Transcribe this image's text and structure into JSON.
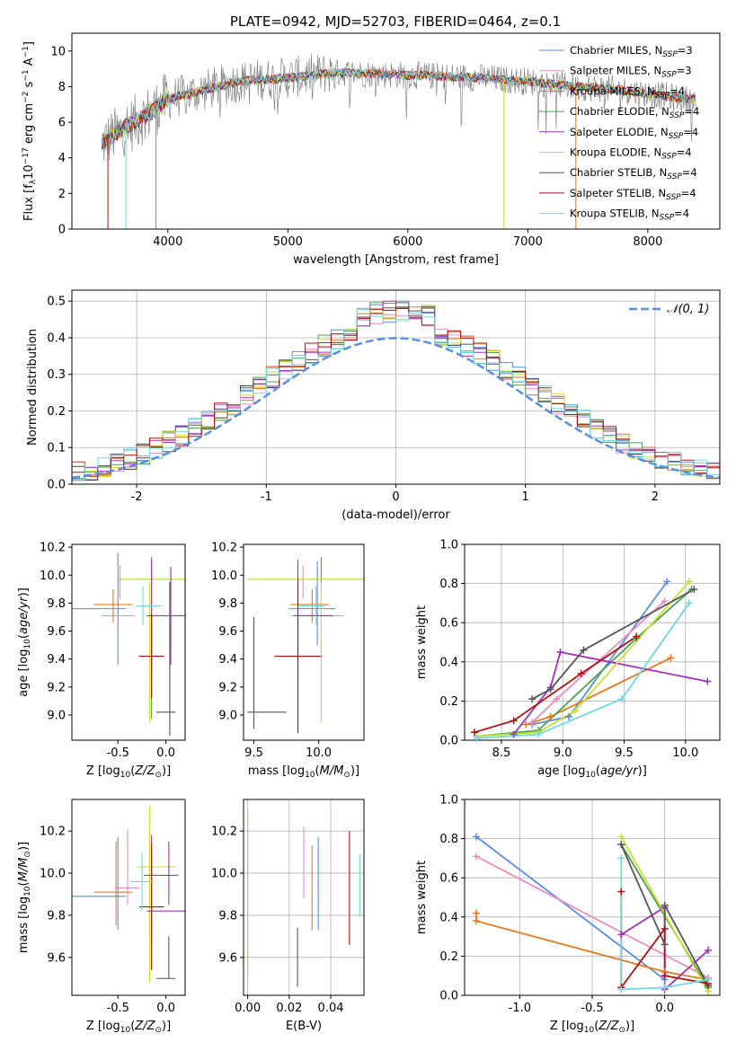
{
  "figure": {
    "title": "PLATE=0942, MJD=52703, FIBERID=0464, z=0.1"
  },
  "colors": {
    "chabrier_miles": "#5b8ee0",
    "salpeter_miles": "#e98ec3",
    "kroupa_miles": "#e8781e",
    "chabrier_elodie": "#50a050",
    "salpeter_elodie": "#a030c0",
    "kroupa_elodie": "#c8e030",
    "chabrier_stelib": "#555555",
    "salpeter_stelib": "#b01010",
    "kroupa_stelib": "#70d8e0"
  },
  "chart_data": [
    {
      "id": "spectrum",
      "type": "line",
      "title": "PLATE=0942, MJD=52703, FIBERID=0464, z=0.1",
      "xlabel": "wavelength [Angstrom, rest frame]",
      "ylabel": "Flux [f_λ 10⁻¹⁷ erg cm⁻² s⁻¹ A⁻¹]",
      "xlim": [
        3200,
        8600
      ],
      "ylim": [
        0,
        11
      ],
      "xticks": [
        4000,
        5000,
        6000,
        7000,
        8000
      ],
      "yticks": [
        0,
        2,
        4,
        6,
        8,
        10
      ],
      "grid": false,
      "legend_position": "right",
      "legend": [
        "Chabrier MILES, N_SSP=3",
        "Salpeter MILES, N_SSP=3",
        "Kroupa MILES, N_SSP=4",
        "Chabrier ELODIE, N_SSP=4",
        "Salpeter ELODIE, N_SSP=4",
        "Kroupa ELODIE, N_SSP=4",
        "Chabrier STELIB, N_SSP=4",
        "Salpeter STELIB, N_SSP=4",
        "Kroupa STELIB, N_SSP=4"
      ],
      "data_envelope": {
        "x": [
          3450,
          3600,
          3800,
          4000,
          4300,
          4600,
          5000,
          5400,
          5800,
          6200,
          6600,
          7000,
          7400,
          7800,
          8200,
          8400
        ],
        "y": [
          4.8,
          5.5,
          6.3,
          7.3,
          7.8,
          8.3,
          8.5,
          8.8,
          8.7,
          8.6,
          8.5,
          8.3,
          8.0,
          7.8,
          7.4,
          7.3
        ]
      }
    },
    {
      "id": "residual_histogram",
      "type": "bar",
      "xlabel": "(data-model)/error",
      "ylabel": "Normed distribution",
      "xlim": [
        -2.5,
        2.5
      ],
      "ylim": [
        0,
        0.53
      ],
      "xticks": [
        -2,
        -1,
        0,
        1,
        2
      ],
      "yticks": [
        0.0,
        0.1,
        0.2,
        0.3,
        0.4,
        0.5
      ],
      "grid": true,
      "legend_position": "top-right",
      "reference_curve": "𝒩(0, 1)",
      "bin_width": 0.1,
      "bin_start": -2.5
    },
    {
      "id": "age_vs_Z",
      "type": "scatter",
      "xlabel": "Z [log₁₀(Z/Z⊙)]",
      "ylabel": "age  [log₁₀(age/yr)]",
      "xlim": [
        -0.98,
        0.2
      ],
      "ylim": [
        8.82,
        10.22
      ],
      "xticks": [
        -0.5,
        0.0
      ],
      "yticks": [
        9.0,
        9.2,
        9.4,
        9.6,
        9.8,
        10.0,
        10.2
      ],
      "grid": false,
      "points": [
        {
          "s": "chabrier_miles",
          "x": -0.7,
          "y": 9.76,
          "xe": 0.28,
          "ye": 0.0
        },
        {
          "s": "chabrier_miles",
          "x": -0.5,
          "y": 9.76,
          "xe": 0.0,
          "ye": 0.4
        },
        {
          "s": "salpeter_miles",
          "x": -0.5,
          "y": 9.71,
          "xe": 0.17,
          "ye": 0.0
        },
        {
          "s": "salpeter_miles",
          "x": -0.48,
          "y": 9.95,
          "xe": 0.0,
          "ye": 0.12
        },
        {
          "s": "kroupa_miles",
          "x": -0.55,
          "y": 9.79,
          "xe": 0.2,
          "ye": 0.0
        },
        {
          "s": "kroupa_miles",
          "x": -0.55,
          "y": 9.78,
          "xe": 0.0,
          "ye": 0.12
        },
        {
          "s": "chabrier_elodie",
          "x": -0.15,
          "y": 9.97,
          "xe": 0.35,
          "ye": 0.0
        },
        {
          "s": "chabrier_elodie",
          "x": -0.15,
          "y": 9.55,
          "xe": 0.0,
          "ye": 0.58
        },
        {
          "s": "kroupa_elodie",
          "x": -0.15,
          "y": 9.97,
          "xe": 0.35,
          "ye": 0.0
        },
        {
          "s": "kroupa_elodie",
          "x": -0.17,
          "y": 9.45,
          "xe": 0.0,
          "ye": 0.5
        },
        {
          "s": "salpeter_elodie",
          "x": 0.0,
          "y": 9.71,
          "xe": 0.2,
          "ye": 0.0
        },
        {
          "s": "salpeter_elodie",
          "x": -0.15,
          "y": 9.71,
          "xe": 0.0,
          "ye": 0.4
        },
        {
          "s": "salpeter_elodie",
          "x": 0.05,
          "y": 9.71,
          "xe": 0.0,
          "ye": 0.35
        },
        {
          "s": "salpeter_stelib",
          "x": -0.15,
          "y": 9.42,
          "xe": 0.13,
          "ye": 0.0
        },
        {
          "s": "salpeter_stelib",
          "x": -0.15,
          "y": 9.42,
          "xe": 0.0,
          "ye": 0.3
        },
        {
          "s": "chabrier_stelib",
          "x": 0.0,
          "y": 9.02,
          "xe": 0.1,
          "ye": 0.0
        },
        {
          "s": "chabrier_stelib",
          "x": 0.04,
          "y": 9.4,
          "xe": 0.0,
          "ye": 0.55
        },
        {
          "s": "kroupa_stelib",
          "x": -0.18,
          "y": 9.78,
          "xe": 0.13,
          "ye": 0.0
        },
        {
          "s": "kroupa_stelib",
          "x": -0.24,
          "y": 9.78,
          "xe": 0.0,
          "ye": 0.14
        }
      ]
    },
    {
      "id": "age_vs_mass",
      "type": "scatter",
      "xlabel": "mass [log₁₀(M/M⊙)]",
      "ylabel": "",
      "xlim": [
        9.42,
        10.35
      ],
      "ylim": [
        8.82,
        10.22
      ],
      "xticks": [
        9.5,
        10.0
      ],
      "yticks": [
        9.0,
        9.2,
        9.4,
        9.6,
        9.8,
        10.0,
        10.2
      ],
      "grid": false,
      "points": [
        {
          "s": "chabrier_miles",
          "x": 9.95,
          "y": 9.76,
          "xe": 0.18,
          "ye": 0.0
        },
        {
          "s": "chabrier_miles",
          "x": 9.99,
          "y": 9.8,
          "xe": 0.0,
          "ye": 0.3
        },
        {
          "s": "salpeter_miles",
          "x": 9.99,
          "y": 9.71,
          "xe": 0.2,
          "ye": 0.0
        },
        {
          "s": "salpeter_miles",
          "x": 9.88,
          "y": 9.95,
          "xe": 0.0,
          "ye": 0.12
        },
        {
          "s": "kroupa_miles",
          "x": 9.93,
          "y": 9.79,
          "xe": 0.15,
          "ye": 0.0
        },
        {
          "s": "kroupa_miles",
          "x": 9.95,
          "y": 9.78,
          "xe": 0.0,
          "ye": 0.12
        },
        {
          "s": "chabrier_elodie",
          "x": 9.9,
          "y": 9.97,
          "xe": 0.45,
          "ye": 0.0
        },
        {
          "s": "chabrier_elodie",
          "x": 10.02,
          "y": 9.55,
          "xe": 0.0,
          "ye": 0.58
        },
        {
          "s": "kroupa_elodie",
          "x": 9.9,
          "y": 9.97,
          "xe": 0.45,
          "ye": 0.0
        },
        {
          "s": "kroupa_elodie",
          "x": 10.02,
          "y": 9.45,
          "xe": 0.0,
          "ye": 0.5
        },
        {
          "s": "salpeter_elodie",
          "x": 9.96,
          "y": 9.71,
          "xe": 0.15,
          "ye": 0.0
        },
        {
          "s": "salpeter_elodie",
          "x": 9.84,
          "y": 9.71,
          "xe": 0.0,
          "ye": 0.4
        },
        {
          "s": "salpeter_stelib",
          "x": 9.84,
          "y": 9.42,
          "xe": 0.18,
          "ye": 0.0
        },
        {
          "s": "salpeter_stelib",
          "x": 9.84,
          "y": 9.42,
          "xe": 0.0,
          "ye": 0.55
        },
        {
          "s": "chabrier_stelib",
          "x": 9.6,
          "y": 9.02,
          "xe": 0.15,
          "ye": 0.0
        },
        {
          "s": "chabrier_stelib",
          "x": 9.5,
          "y": 9.3,
          "xe": 0.0,
          "ye": 0.4
        },
        {
          "s": "kroupa_stelib",
          "x": 9.95,
          "y": 9.78,
          "xe": 0.1,
          "ye": 0.0
        },
        {
          "s": "kroupa_stelib",
          "x": 9.98,
          "y": 9.78,
          "xe": 0.0,
          "ye": 0.14
        }
      ]
    },
    {
      "id": "mass_weight_vs_age",
      "type": "line",
      "xlabel": "age  [log₁₀(age/yr)]",
      "ylabel": "mass weight",
      "xlim": [
        8.2,
        10.28
      ],
      "ylim": [
        0,
        1.0
      ],
      "xticks": [
        8.5,
        9.0,
        9.5,
        10.0
      ],
      "yticks": [
        0.0,
        0.2,
        0.4,
        0.6,
        0.8,
        1.0
      ],
      "grid": true,
      "series": [
        {
          "s": "chabrier_miles",
          "x": [
            8.75,
            9.05,
            9.85
          ],
          "y": [
            0.08,
            0.12,
            0.81
          ]
        },
        {
          "s": "salpeter_miles",
          "x": [
            8.75,
            8.95,
            9.83
          ],
          "y": [
            0.09,
            0.21,
            0.71
          ]
        },
        {
          "s": "kroupa_miles",
          "x": [
            8.7,
            8.9,
            9.88
          ],
          "y": [
            0.08,
            0.12,
            0.42
          ]
        },
        {
          "s": "chabrier_elodie",
          "x": [
            8.3,
            8.8,
            9.6,
            10.05
          ],
          "y": [
            0.02,
            0.05,
            0.52,
            0.77
          ]
        },
        {
          "s": "salpeter_elodie",
          "x": [
            8.6,
            8.9,
            8.98,
            10.18
          ],
          "y": [
            0.03,
            0.27,
            0.45,
            0.3
          ]
        },
        {
          "s": "kroupa_elodie",
          "x": [
            8.3,
            8.8,
            9.1,
            10.03
          ],
          "y": [
            0.02,
            0.04,
            0.15,
            0.81
          ]
        },
        {
          "s": "chabrier_stelib",
          "x": [
            8.75,
            8.9,
            9.17,
            10.07
          ],
          "y": [
            0.21,
            0.26,
            0.46,
            0.77
          ]
        },
        {
          "s": "salpeter_stelib",
          "x": [
            8.28,
            8.6,
            9.15,
            9.6
          ],
          "y": [
            0.04,
            0.1,
            0.34,
            0.53
          ]
        },
        {
          "s": "kroupa_stelib",
          "x": [
            8.3,
            8.8,
            9.48,
            10.03
          ],
          "y": [
            0.01,
            0.03,
            0.21,
            0.7
          ]
        }
      ]
    },
    {
      "id": "mass_vs_Z",
      "type": "scatter",
      "xlabel": "Z [log₁₀(Z/Z⊙)]",
      "ylabel": "mass [log₁₀(M/M⊙)]",
      "xlim": [
        -0.98,
        0.2
      ],
      "ylim": [
        9.42,
        10.35
      ],
      "xticks": [
        -0.5,
        0.0
      ],
      "yticks": [
        9.6,
        9.8,
        10.0,
        10.2
      ],
      "grid": false,
      "points": [
        {
          "s": "chabrier_miles",
          "x": -0.7,
          "y": 9.89,
          "xe": 0.28,
          "ye": 0.0
        },
        {
          "s": "chabrier_miles",
          "x": -0.5,
          "y": 9.95,
          "xe": 0.0,
          "ye": 0.22
        },
        {
          "s": "salpeter_miles",
          "x": -0.4,
          "y": 9.93,
          "xe": 0.13,
          "ye": 0.0
        },
        {
          "s": "salpeter_miles",
          "x": -0.4,
          "y": 10.03,
          "xe": 0.0,
          "ye": 0.18
        },
        {
          "s": "kroupa_miles",
          "x": -0.55,
          "y": 9.91,
          "xe": 0.2,
          "ye": 0.0
        },
        {
          "s": "kroupa_miles",
          "x": -0.52,
          "y": 9.95,
          "xe": 0.0,
          "ye": 0.2
        },
        {
          "s": "chabrier_elodie",
          "x": -0.17,
          "y": 10.0,
          "xe": 0.0,
          "ye": 0.3
        },
        {
          "s": "kroupa_elodie",
          "x": -0.1,
          "y": 10.03,
          "xe": 0.2,
          "ye": 0.0
        },
        {
          "s": "kroupa_elodie",
          "x": -0.17,
          "y": 9.9,
          "xe": 0.0,
          "ye": 0.42
        },
        {
          "s": "salpeter_elodie",
          "x": 0.0,
          "y": 9.82,
          "xe": 0.2,
          "ye": 0.0
        },
        {
          "s": "salpeter_elodie",
          "x": -0.15,
          "y": 9.93,
          "xe": 0.0,
          "ye": 0.25
        },
        {
          "s": "salpeter_elodie",
          "x": 0.03,
          "y": 10.0,
          "xe": 0.0,
          "ye": 0.15
        },
        {
          "s": "salpeter_stelib",
          "x": -0.15,
          "y": 9.84,
          "xe": 0.13,
          "ye": 0.0
        },
        {
          "s": "salpeter_stelib",
          "x": -0.15,
          "y": 9.84,
          "xe": 0.0,
          "ye": 0.3
        },
        {
          "s": "chabrier_stelib",
          "x": -0.05,
          "y": 9.99,
          "xe": 0.18,
          "ye": 0.0
        },
        {
          "s": "chabrier_stelib",
          "x": 0.0,
          "y": 9.5,
          "xe": 0.1,
          "ye": 0.0
        },
        {
          "s": "chabrier_stelib",
          "x": 0.03,
          "y": 9.6,
          "xe": 0.0,
          "ye": 0.1
        },
        {
          "s": "kroupa_stelib",
          "x": -0.25,
          "y": 9.96,
          "xe": 0.12,
          "ye": 0.0
        },
        {
          "s": "kroupa_stelib",
          "x": -0.25,
          "y": 9.96,
          "xe": 0.0,
          "ye": 0.14
        }
      ]
    },
    {
      "id": "mass_vs_EBV",
      "type": "scatter",
      "xlabel": "E(B-V)",
      "ylabel": "",
      "xlim": [
        -0.002,
        0.056
      ],
      "ylim": [
        9.42,
        10.35
      ],
      "xticks": [
        0.0,
        0.02,
        0.04
      ],
      "yticks": [
        9.6,
        9.8,
        10.0,
        10.2
      ],
      "grid": true,
      "points": [
        {
          "s": "chabrier_elodie",
          "x": 0.0,
          "y": 9.9,
          "xe": 0.0,
          "ye": 0.4
        },
        {
          "s": "kroupa_elodie",
          "x": 0.0,
          "y": 9.85,
          "xe": 0.0,
          "ye": 0.45
        },
        {
          "s": "chabrier_stelib",
          "x": 0.024,
          "y": 9.6,
          "xe": 0.0,
          "ye": 0.14
        },
        {
          "s": "salpeter_miles",
          "x": 0.027,
          "y": 10.05,
          "xe": 0.0,
          "ye": 0.17
        },
        {
          "s": "kroupa_miles",
          "x": 0.031,
          "y": 9.93,
          "xe": 0.0,
          "ye": 0.2
        },
        {
          "s": "chabrier_miles",
          "x": 0.034,
          "y": 9.95,
          "xe": 0.0,
          "ye": 0.22
        },
        {
          "s": "salpeter_stelib",
          "x": 0.049,
          "y": 9.93,
          "xe": 0.0,
          "ye": 0.27
        },
        {
          "s": "kroupa_stelib",
          "x": 0.054,
          "y": 9.94,
          "xe": 0.0,
          "ye": 0.15
        }
      ]
    },
    {
      "id": "mass_weight_vs_Z",
      "type": "line",
      "xlabel": "Z [log₁₀(Z/Z⊙)]",
      "ylabel": "mass weight",
      "xlim": [
        -1.38,
        0.38
      ],
      "ylim": [
        0,
        1.0
      ],
      "xticks": [
        -1.0,
        -0.5,
        0.0
      ],
      "yticks": [
        0.0,
        0.2,
        0.4,
        0.6,
        0.8,
        1.0
      ],
      "grid": true,
      "series": [
        {
          "s": "chabrier_miles",
          "x": [
            -1.3,
            0.0,
            0.0
          ],
          "y": [
            0.81,
            0.08,
            0.12
          ]
        },
        {
          "s": "salpeter_miles",
          "x": [
            -1.3,
            0.3
          ],
          "y": [
            0.71,
            0.09
          ]
        },
        {
          "s": "kroupa_miles",
          "x": [
            -1.3,
            -1.3,
            0.0,
            0.3
          ],
          "y": [
            0.42,
            0.38,
            0.12,
            0.08
          ]
        },
        {
          "s": "chabrier_elodie",
          "x": [
            -0.3,
            0.3
          ],
          "y": [
            0.77,
            0.04
          ]
        },
        {
          "s": "salpeter_elodie",
          "x": [
            -0.3,
            0.0,
            0.0,
            0.3
          ],
          "y": [
            0.31,
            0.45,
            0.03,
            0.23
          ]
        },
        {
          "s": "kroupa_elodie",
          "x": [
            -0.3,
            0.3
          ],
          "y": [
            0.81,
            0.02
          ]
        },
        {
          "s": "chabrier_stelib",
          "x": [
            -0.3,
            0.0,
            0.0,
            0.3
          ],
          "y": [
            0.77,
            0.26,
            0.46,
            0.05
          ]
        },
        {
          "s": "salpeter_stelib",
          "x": [
            -0.3,
            -0.3,
            0.0,
            0.0,
            0.3
          ],
          "y": [
            0.53,
            0.04,
            0.34,
            0.1,
            0.06
          ]
        },
        {
          "s": "kroupa_stelib",
          "x": [
            -0.3,
            -0.3,
            0.0,
            0.3
          ],
          "y": [
            0.7,
            0.03,
            0.04,
            0.08
          ]
        }
      ]
    }
  ]
}
